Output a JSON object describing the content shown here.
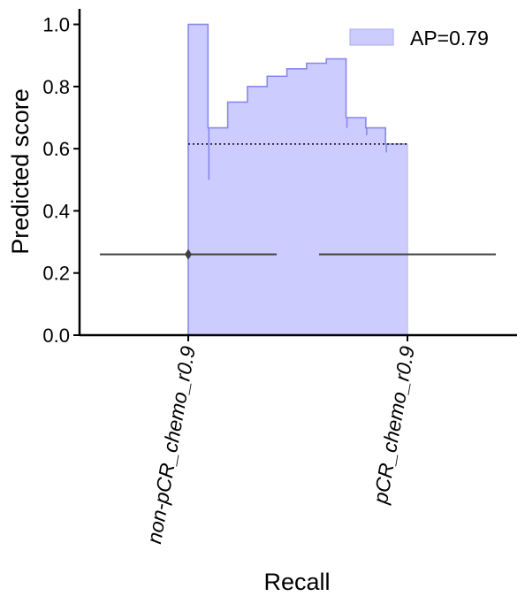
{
  "chart_data": {
    "type": "area",
    "xlabel": "Recall",
    "ylabel": "Predicted score",
    "ylim": [
      0,
      1.05
    ],
    "yticks": [
      0.0,
      0.2,
      0.4,
      0.6,
      0.8,
      1.0
    ],
    "ytick_labels": [
      "0.0",
      "0.2",
      "0.4",
      "0.6",
      "0.8",
      "1.0"
    ],
    "categories": [
      "non-pCR_chemo_r0.9",
      "pCR_chemo_r0.9"
    ],
    "legend": {
      "placement": "top-right",
      "label": "AP=0.79"
    },
    "fill_color": "#ccccff",
    "line_color": "#8888ee",
    "pr_curve": {
      "recall": [
        0.0,
        0.09,
        0.18,
        0.27,
        0.36,
        0.45,
        0.54,
        0.63,
        0.72,
        0.81,
        0.9,
        1.0
      ],
      "precision": [
        1.0,
        0.667,
        0.75,
        0.8,
        0.833,
        0.857,
        0.875,
        0.889,
        0.7,
        0.667,
        0.615,
        0.615
      ],
      "dips": [
        {
          "recall": 0.09,
          "value": 0.5
        },
        {
          "recall": 0.72,
          "value": 0.667
        },
        {
          "recall": 0.81,
          "value": 0.643
        },
        {
          "recall": 0.9,
          "value": 0.588
        }
      ]
    },
    "baseline": 0.615,
    "box_whiskers": [
      {
        "category": "non-pCR_chemo_r0.9",
        "y": 0.26,
        "outlier": 0.26
      },
      {
        "category": "pCR_chemo_r0.9",
        "y": 0.26
      }
    ]
  }
}
